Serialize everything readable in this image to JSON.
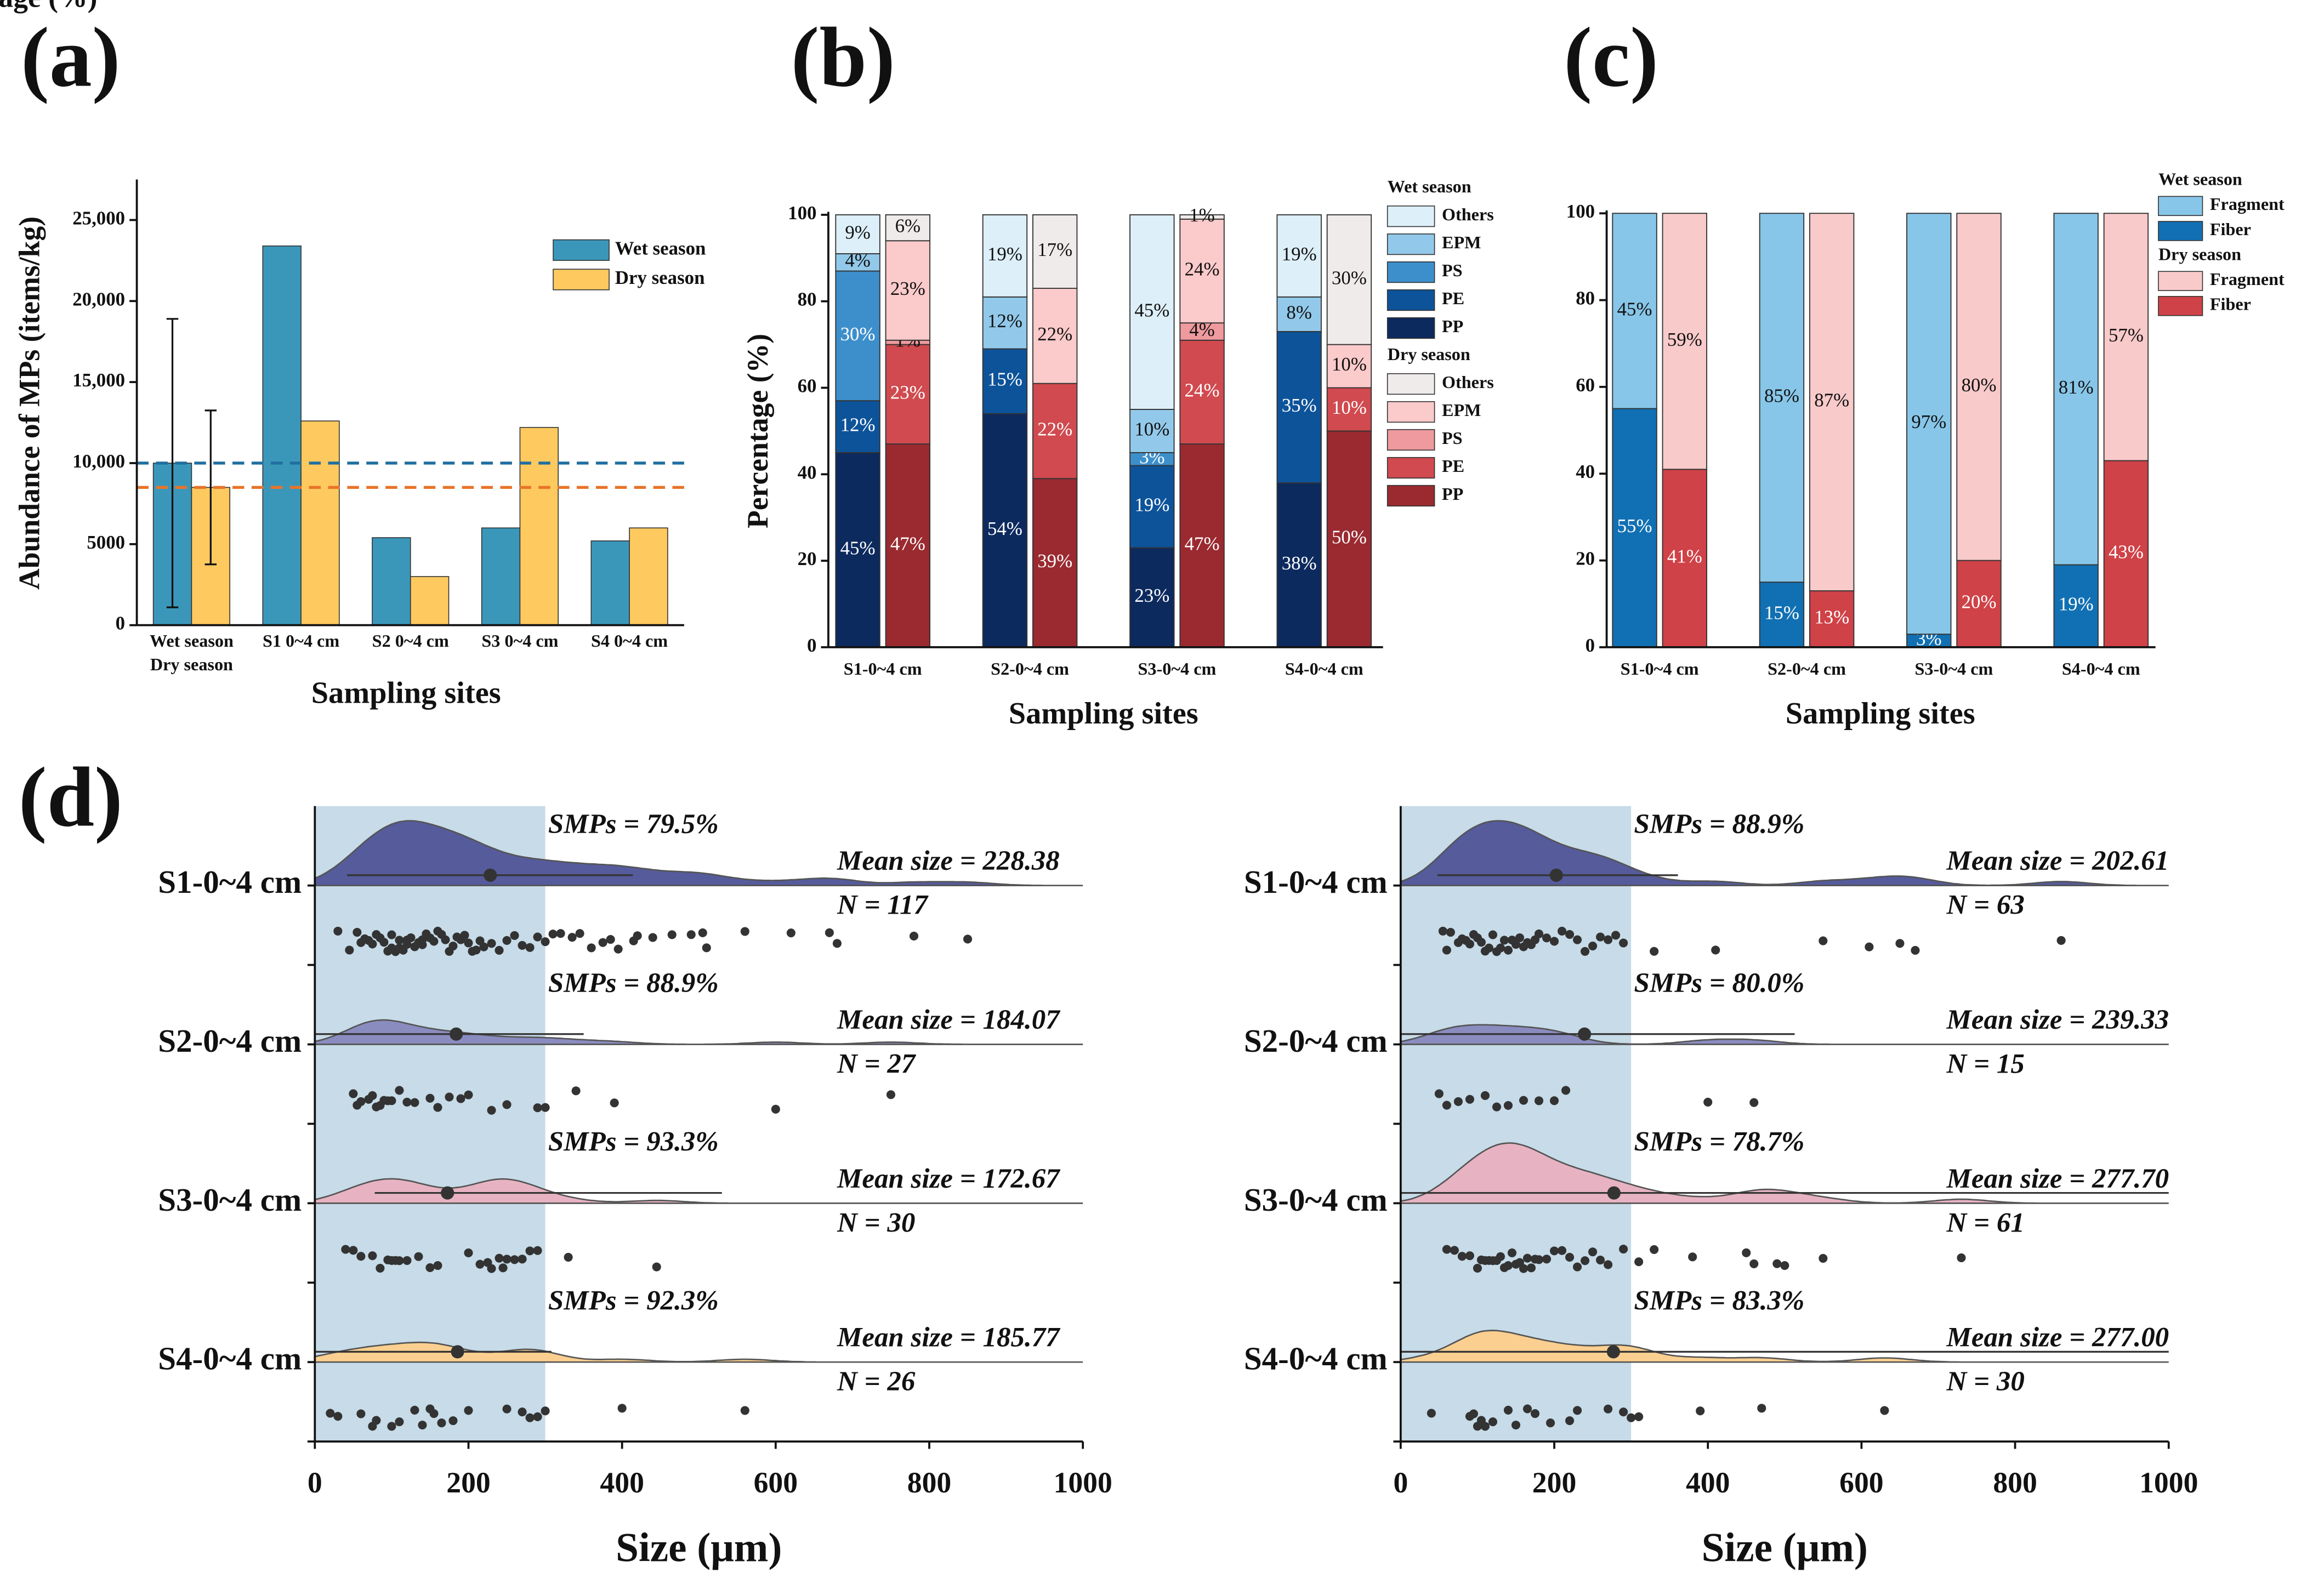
{
  "chart_data": [
    {
      "type": "bar",
      "panel_label": "(a)",
      "xlabel": "Sampling sites",
      "ylabel": "Abundance of MPs (items/kg)",
      "categories": [
        "Wet season\nDry season",
        "S1 0~4 cm",
        "S2 0~4 cm",
        "S3 0~4 cm",
        "S4 0~4 cm"
      ],
      "series": [
        {
          "name": "Wet season",
          "color": "#3b97b9",
          "values": [
            10000,
            23400,
            5400,
            6000,
            5200
          ],
          "errors": [
            8900,
            null,
            null,
            null,
            null
          ]
        },
        {
          "name": "Dry season",
          "color": "#fec95f",
          "values": [
            8500,
            12600,
            3000,
            12200,
            6000
          ],
          "errors": [
            4750,
            null,
            null,
            null,
            null
          ]
        }
      ],
      "hlines": [
        {
          "value": 10000,
          "color": "#1f6f9f"
        },
        {
          "value": 8500,
          "color": "#e8742a"
        }
      ],
      "ylim": [
        0,
        27500
      ],
      "yticks": [
        0,
        5000,
        {
          "value": 10000,
          "label": "10,000"
        },
        {
          "value": 15000,
          "label": "15,000"
        },
        {
          "value": 20000,
          "label": "20,000"
        },
        {
          "value": 25000,
          "label": "25,000"
        }
      ]
    },
    {
      "type": "stacked_bar",
      "panel_label": "(b)",
      "xlabel": "Sampling sites",
      "ylabel": "Percentage (%)",
      "categories": [
        "S1-0~4 cm",
        "S2-0~4 cm",
        "S3-0~4 cm",
        "S4-0~4 cm"
      ],
      "groups": [
        {
          "name": "Wet season",
          "series": [
            {
              "name": "PP",
              "color": "#0d2a5e",
              "values": [
                45,
                54,
                23,
                38
              ],
              "value_labels": [
                "45%",
                "54%",
                "23%",
                "38%"
              ]
            },
            {
              "name": "PE",
              "color": "#0d539a",
              "values": [
                12,
                15,
                19,
                35
              ],
              "value_labels": [
                "12%",
                "15%",
                "19%",
                "35%"
              ]
            },
            {
              "name": "PS",
              "color": "#3d8fcc",
              "values": [
                30,
                0,
                3,
                0
              ],
              "value_labels": [
                "30%",
                null,
                "3%",
                null
              ]
            },
            {
              "name": "EPM",
              "color": "#92c9ea",
              "values": [
                4,
                12,
                10,
                8
              ],
              "value_labels": [
                "4%",
                "12%",
                "10%",
                "8%"
              ]
            },
            {
              "name": "Others",
              "color": "#ddeff9",
              "values": [
                9,
                19,
                45,
                19
              ],
              "value_labels": [
                "9%",
                "19%",
                "45%",
                "19%"
              ]
            }
          ]
        },
        {
          "name": "Dry season",
          "series": [
            {
              "name": "PP",
              "color": "#9a2a30",
              "values": [
                47,
                39,
                47,
                50
              ],
              "value_labels": [
                "47%",
                "39%",
                "47%",
                "50%"
              ]
            },
            {
              "name": "PE",
              "color": "#d04a4f",
              "values": [
                23,
                22,
                24,
                10
              ],
              "value_labels": [
                "23%",
                "22%",
                "24%",
                "10%"
              ]
            },
            {
              "name": "PS",
              "color": "#ee9a9e",
              "values": [
                1,
                0,
                4,
                0
              ],
              "value_labels": [
                "1%",
                null,
                "4%",
                null
              ]
            },
            {
              "name": "EPM",
              "color": "#fbcaca",
              "values": [
                23,
                22,
                24,
                10
              ],
              "value_labels": [
                "23%",
                "22%",
                "24%",
                "10%"
              ]
            },
            {
              "name": "Others",
              "color": "#efebea",
              "values": [
                6,
                17,
                1,
                30
              ],
              "value_labels": [
                "6%",
                "17%",
                "1%",
                "30%"
              ]
            }
          ]
        }
      ],
      "ylim": [
        0,
        100
      ],
      "yticks": [
        0,
        20,
        40,
        60,
        80,
        100
      ]
    },
    {
      "type": "stacked_bar",
      "panel_label": "(c)",
      "xlabel": "Sampling sites",
      "ylabel": "Percentage (%)",
      "categories": [
        "S1-0~4 cm",
        "S2-0~4 cm",
        "S3-0~4 cm",
        "S4-0~4 cm"
      ],
      "groups": [
        {
          "name": "Wet season",
          "series": [
            {
              "name": "Fiber",
              "color": "#1170b3",
              "values": [
                55,
                15,
                3,
                19
              ],
              "value_labels": [
                "55%",
                "15%",
                "3%",
                "19%"
              ]
            },
            {
              "name": "Fragment",
              "color": "#87c6e8",
              "values": [
                45,
                85,
                97,
                81
              ],
              "value_labels": [
                "45%",
                "85%",
                "97%",
                "81%"
              ]
            }
          ]
        },
        {
          "name": "Dry season",
          "series": [
            {
              "name": "Fiber",
              "color": "#cf4247",
              "values": [
                41,
                13,
                20,
                43
              ],
              "value_labels": [
                "41%",
                "13%",
                "20%",
                "43%"
              ]
            },
            {
              "name": "Fragment",
              "color": "#f9caca",
              "values": [
                59,
                87,
                80,
                57
              ],
              "value_labels": [
                "59%",
                "87%",
                "80%",
                "57%"
              ]
            }
          ]
        }
      ],
      "ylim": [
        0,
        100
      ],
      "yticks": [
        0,
        20,
        40,
        60,
        80,
        100
      ]
    },
    {
      "type": "raincloud",
      "panel_label": "(d)",
      "xlabel": "Size (μm)",
      "xlim": [
        0,
        1000
      ],
      "xticks": [
        0,
        200,
        400,
        600,
        800,
        1000
      ],
      "shade": [
        0,
        300
      ],
      "shade_color": "#c7dbe8",
      "rows": [
        {
          "name": "S1-0~4 cm",
          "color": "#555b9b",
          "smps": "SMPs = 79.5%",
          "mean": 228.38,
          "mean_label": "Mean size = 228.38",
          "n": "N = 117",
          "whisker": [
            42,
            414
          ],
          "points": [
            30,
            45,
            55,
            60,
            65,
            70,
            75,
            80,
            85,
            90,
            95,
            100,
            100,
            105,
            110,
            110,
            115,
            120,
            120,
            125,
            130,
            135,
            140,
            140,
            145,
            150,
            155,
            160,
            165,
            170,
            175,
            180,
            185,
            190,
            195,
            200,
            205,
            210,
            215,
            220,
            230,
            240,
            250,
            260,
            270,
            280,
            290,
            300,
            310,
            320,
            335,
            345,
            360,
            375,
            385,
            395,
            415,
            420,
            440,
            465,
            490,
            505,
            510,
            560,
            620,
            670,
            680,
            780,
            850
          ]
        },
        {
          "name": "S2-0~4 cm",
          "color": "#8a8cc0",
          "smps": "SMPs = 88.9%",
          "mean": 184.07,
          "mean_label": "Mean size = 184.07",
          "n": "N = 27",
          "whisker": [
            0,
            350
          ],
          "points": [
            50,
            55,
            60,
            70,
            75,
            80,
            85,
            90,
            95,
            100,
            110,
            120,
            130,
            150,
            160,
            175,
            190,
            200,
            230,
            250,
            290,
            300,
            340,
            390,
            600,
            750
          ]
        },
        {
          "name": "S3-0~4 cm",
          "color": "#e7b3c2",
          "smps": "SMPs = 93.3%",
          "mean": 172.67,
          "mean_label": "Mean size = 172.67",
          "n": "N = 30",
          "whisker": [
            78,
            530
          ],
          "points": [
            40,
            50,
            60,
            75,
            85,
            95,
            100,
            105,
            110,
            120,
            135,
            150,
            160,
            200,
            215,
            225,
            230,
            240,
            245,
            250,
            260,
            270,
            280,
            290,
            330,
            445
          ]
        },
        {
          "name": "S4-0~4 cm",
          "color": "#fbcf8f",
          "smps": "SMPs = 92.3%",
          "mean": 185.77,
          "mean_label": "Mean size = 185.77",
          "n": "N = 26",
          "whisker": [
            0,
            308
          ],
          "points": [
            20,
            30,
            60,
            75,
            80,
            100,
            110,
            130,
            140,
            150,
            155,
            165,
            180,
            200,
            250,
            270,
            280,
            290,
            300,
            400,
            560
          ]
        }
      ]
    },
    {
      "type": "raincloud",
      "xlabel": "Size (μm)",
      "xlim": [
        0,
        1000
      ],
      "xticks": [
        0,
        200,
        400,
        600,
        800,
        1000
      ],
      "shade": [
        0,
        300
      ],
      "shade_color": "#c7dbe8",
      "rows": [
        {
          "name": "S1-0~4 cm",
          "color": "#555b9b",
          "smps": "SMPs = 88.9%",
          "mean": 202.61,
          "mean_label": "Mean size = 202.61",
          "n": "N = 63",
          "whisker": [
            48,
            361
          ],
          "points": [
            55,
            60,
            65,
            75,
            80,
            85,
            90,
            95,
            100,
            105,
            110,
            115,
            120,
            125,
            130,
            135,
            140,
            145,
            150,
            155,
            160,
            165,
            170,
            175,
            180,
            190,
            200,
            210,
            220,
            230,
            240,
            250,
            260,
            270,
            280,
            290,
            330,
            410,
            550,
            610,
            650,
            670,
            860
          ]
        },
        {
          "name": "S2-0~4 cm",
          "color": "#8a8cc0",
          "smps": "SMPs = 80.0%",
          "mean": 239.33,
          "mean_label": "Mean size = 239.33",
          "n": "N = 15",
          "whisker": [
            0,
            513
          ],
          "points": [
            50,
            60,
            75,
            90,
            110,
            125,
            140,
            160,
            180,
            200,
            215,
            400,
            460
          ]
        },
        {
          "name": "S3-0~4 cm",
          "color": "#e7b3c2",
          "smps": "SMPs = 78.7%",
          "mean": 277.7,
          "mean_label": "Mean size = 277.70",
          "n": "N = 61",
          "whisker": [
            0,
            1000
          ],
          "points": [
            60,
            70,
            80,
            90,
            100,
            105,
            110,
            115,
            120,
            125,
            130,
            135,
            140,
            145,
            150,
            155,
            160,
            165,
            170,
            175,
            180,
            190,
            200,
            210,
            220,
            230,
            240,
            250,
            260,
            270,
            290,
            310,
            330,
            380,
            450,
            460,
            490,
            500,
            550,
            730
          ]
        },
        {
          "name": "S4-0~4 cm",
          "color": "#fbcf8f",
          "smps": "SMPs = 83.3%",
          "mean": 277.0,
          "mean_label": "Mean size = 277.00",
          "n": "N = 30",
          "whisker": [
            0,
            1000
          ],
          "points": [
            40,
            90,
            95,
            100,
            105,
            110,
            120,
            140,
            150,
            165,
            175,
            195,
            220,
            230,
            270,
            290,
            300,
            310,
            390,
            470,
            630
          ]
        }
      ]
    }
  ]
}
